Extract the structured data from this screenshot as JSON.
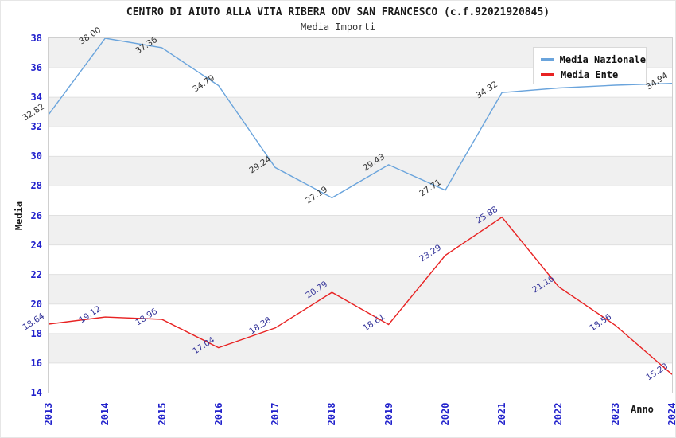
{
  "header": {
    "title": "CENTRO DI AIUTO ALLA VITA RIBERA ODV SAN FRANCESCO (c.f.92021920845)",
    "subtitle": "Media Importi"
  },
  "chart_data": {
    "type": "line",
    "title": "CENTRO DI AIUTO ALLA VITA RIBERA ODV SAN FRANCESCO (c.f.92021920845)",
    "subtitle": "Media Importi",
    "xlabel": "Anno",
    "ylabel": "Media",
    "x": [
      "2013",
      "2014",
      "2015",
      "2016",
      "2017",
      "2018",
      "2019",
      "2020",
      "2021",
      "2022",
      "2023",
      "2024"
    ],
    "ylim": [
      14,
      38
    ],
    "ytick_step": 2,
    "grid": "horizontal-bands",
    "band_color_gray": "#f0f0f0",
    "band_color_white": "#ffffff",
    "gridline_color": "#e0e0e0",
    "tick_label_color": "#2222cc",
    "legend_position": "top-right",
    "series": [
      {
        "name": "Media Nazionale",
        "color": "#6aa4dc",
        "label_color": "#333333",
        "values": [
          32.82,
          38.0,
          37.36,
          34.79,
          29.24,
          27.19,
          29.43,
          27.71,
          34.32,
          34.63,
          34.82,
          34.94
        ],
        "hidden_label_indices": [
          9,
          10
        ]
      },
      {
        "name": "Media Ente",
        "color": "#e82222",
        "label_color": "#333399",
        "values": [
          18.64,
          19.12,
          18.96,
          17.04,
          18.38,
          20.79,
          18.61,
          23.29,
          25.88,
          21.16,
          18.56,
          15.23
        ],
        "hidden_label_indices": []
      }
    ]
  }
}
